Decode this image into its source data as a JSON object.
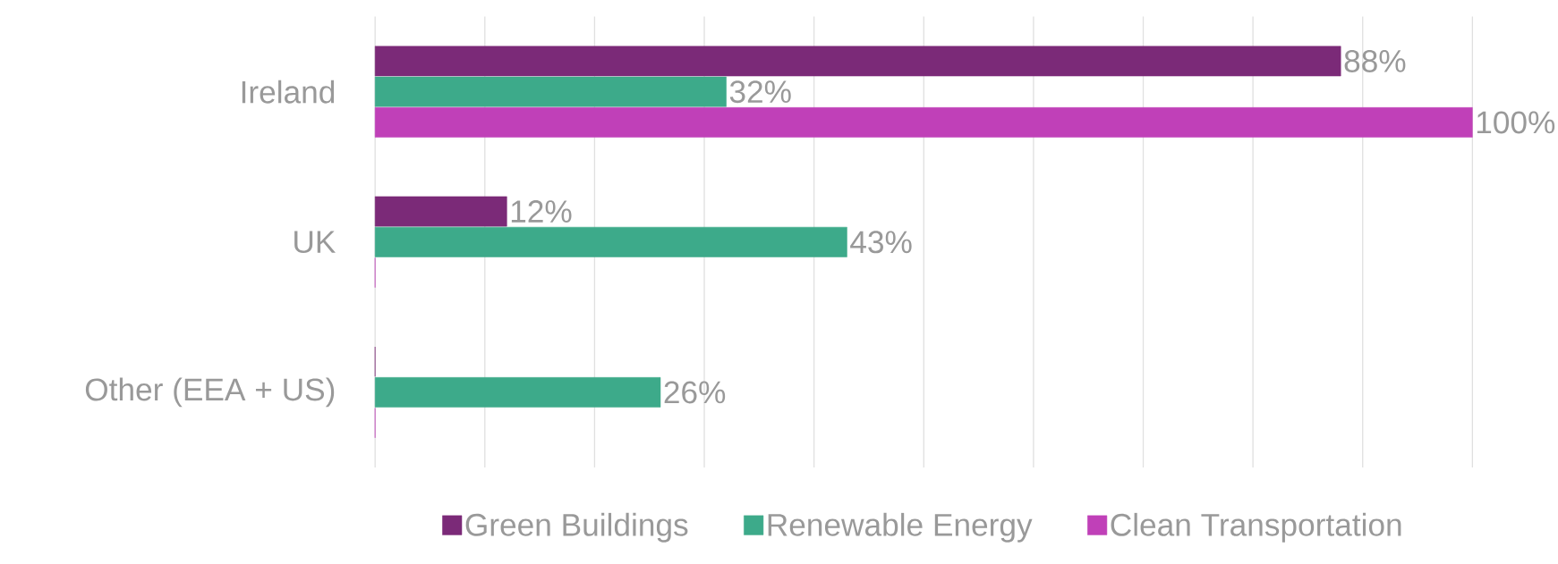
{
  "chart_data": {
    "type": "bar",
    "orientation": "horizontal",
    "categories": [
      "Ireland",
      "UK",
      "Other (EEA + US)"
    ],
    "series": [
      {
        "name": "Green Buildings",
        "color": "#7b2a78",
        "values": [
          88,
          12,
          0
        ],
        "value_labels": [
          "88%",
          "12%",
          null
        ]
      },
      {
        "name": "Renewable Energy",
        "color": "#3daa8a",
        "values": [
          32,
          43,
          26
        ],
        "value_labels": [
          "32%",
          "43%",
          "26%"
        ]
      },
      {
        "name": "Clean Transportation",
        "color": "#c040b8",
        "values": [
          100,
          0,
          0
        ],
        "value_labels": [
          "100%",
          null,
          null
        ]
      }
    ],
    "xlim": [
      0,
      100
    ],
    "xticks": [
      {
        "value": 0,
        "label": null
      },
      {
        "value": 10,
        "label": null
      },
      {
        "value": 20,
        "label": null
      },
      {
        "value": 30,
        "label": null
      },
      {
        "value": 40,
        "label": null
      },
      {
        "value": 50,
        "label": null
      },
      {
        "value": 60,
        "label": null
      },
      {
        "value": 70,
        "label": null
      },
      {
        "value": 80,
        "label": null
      },
      {
        "value": 90,
        "label": null
      },
      {
        "value": 100,
        "label": null
      }
    ],
    "tick_labels": "y",
    "grid": "x",
    "legend": "bottom"
  }
}
